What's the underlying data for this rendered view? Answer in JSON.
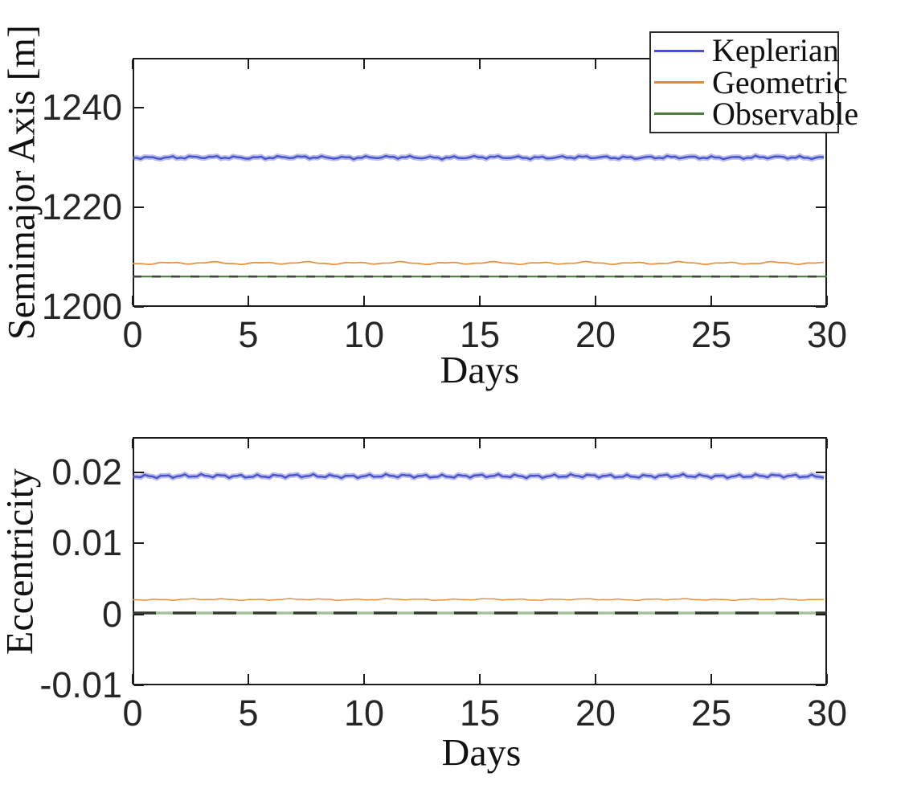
{
  "figure": {
    "background": "#ffffff",
    "axis_color": "#1c1c1c",
    "tick_text_color": "#262626"
  },
  "legend": {
    "position": "top-right",
    "entries": [
      {
        "label": "Keplerian",
        "color": "#4a52c8"
      },
      {
        "label": "Geometric",
        "color": "#e8892e"
      },
      {
        "label": "Observable",
        "color": "#4e7d44"
      }
    ]
  },
  "chart_data": [
    {
      "type": "line",
      "title": "",
      "xlabel": "Days",
      "ylabel": "Semimajor Axis [m]",
      "xlim": [
        0,
        30
      ],
      "ylim": [
        1200,
        1250
      ],
      "xticks": [
        0,
        5,
        10,
        15,
        20,
        25,
        30
      ],
      "xticklabels": [
        "0",
        "5",
        "10",
        "15",
        "20",
        "25",
        "30"
      ],
      "yticks": [
        1200,
        1220,
        1240
      ],
      "yticklabels": [
        "1200",
        "1220",
        "1240"
      ],
      "grid": false,
      "x": [
        0,
        30
      ],
      "series": [
        {
          "name": "Keplerian",
          "color": "#4a52c8",
          "y_constant": 1230.0,
          "style": "fuzzy",
          "width": 2.4,
          "noise": [
            1.2,
            27,
            0.8,
            11
          ]
        },
        {
          "name": "Geometric",
          "color": "#e8892e",
          "y_constant": 1208.8,
          "style": "wavy",
          "width": 1.7,
          "noise": [
            1.1,
            58,
            0.5,
            23
          ]
        },
        {
          "name": "Observable",
          "color": "#4e7d44",
          "y_constant": 1206.1,
          "style": "solid",
          "width": 2.2
        },
        {
          "name": "Observable-dashed-overlay",
          "color": "#3f463e",
          "y_constant": 1206.1,
          "style": "dashed",
          "width": 2.6,
          "dash": [
            11,
            13
          ]
        }
      ]
    },
    {
      "type": "line",
      "title": "",
      "xlabel": "Days",
      "ylabel": "Eccentricity",
      "xlim": [
        0,
        30
      ],
      "ylim": [
        -0.01,
        0.025
      ],
      "xticks": [
        0,
        5,
        10,
        15,
        20,
        25,
        30
      ],
      "xticklabels": [
        "0",
        "5",
        "10",
        "15",
        "20",
        "25",
        "30"
      ],
      "yticks": [
        -0.01,
        0,
        0.01,
        0.02
      ],
      "yticklabels": [
        "-0.01",
        "0",
        "0.01",
        "0.02"
      ],
      "grid": false,
      "x": [
        0,
        30
      ],
      "series": [
        {
          "name": "Keplerian",
          "color": "#4a52c8",
          "y_constant": 0.0195,
          "style": "fuzzy",
          "width": 2.4,
          "noise": [
            1.5,
            23,
            0.7,
            10
          ]
        },
        {
          "name": "Geometric",
          "color": "#e8892e",
          "y_constant": 0.0021,
          "style": "wavy",
          "width": 1.5,
          "noise": [
            0.6,
            41,
            0.3,
            17
          ]
        },
        {
          "name": "Observable",
          "color": "#a5c19b",
          "y_constant": 0.0002,
          "style": "solid",
          "width": 3.5
        },
        {
          "name": "Observable-dashed-overlay",
          "color": "#32392f",
          "y_constant": 0.0002,
          "style": "dashed",
          "width": 3.4,
          "dash": [
            29,
            21
          ]
        }
      ]
    }
  ]
}
